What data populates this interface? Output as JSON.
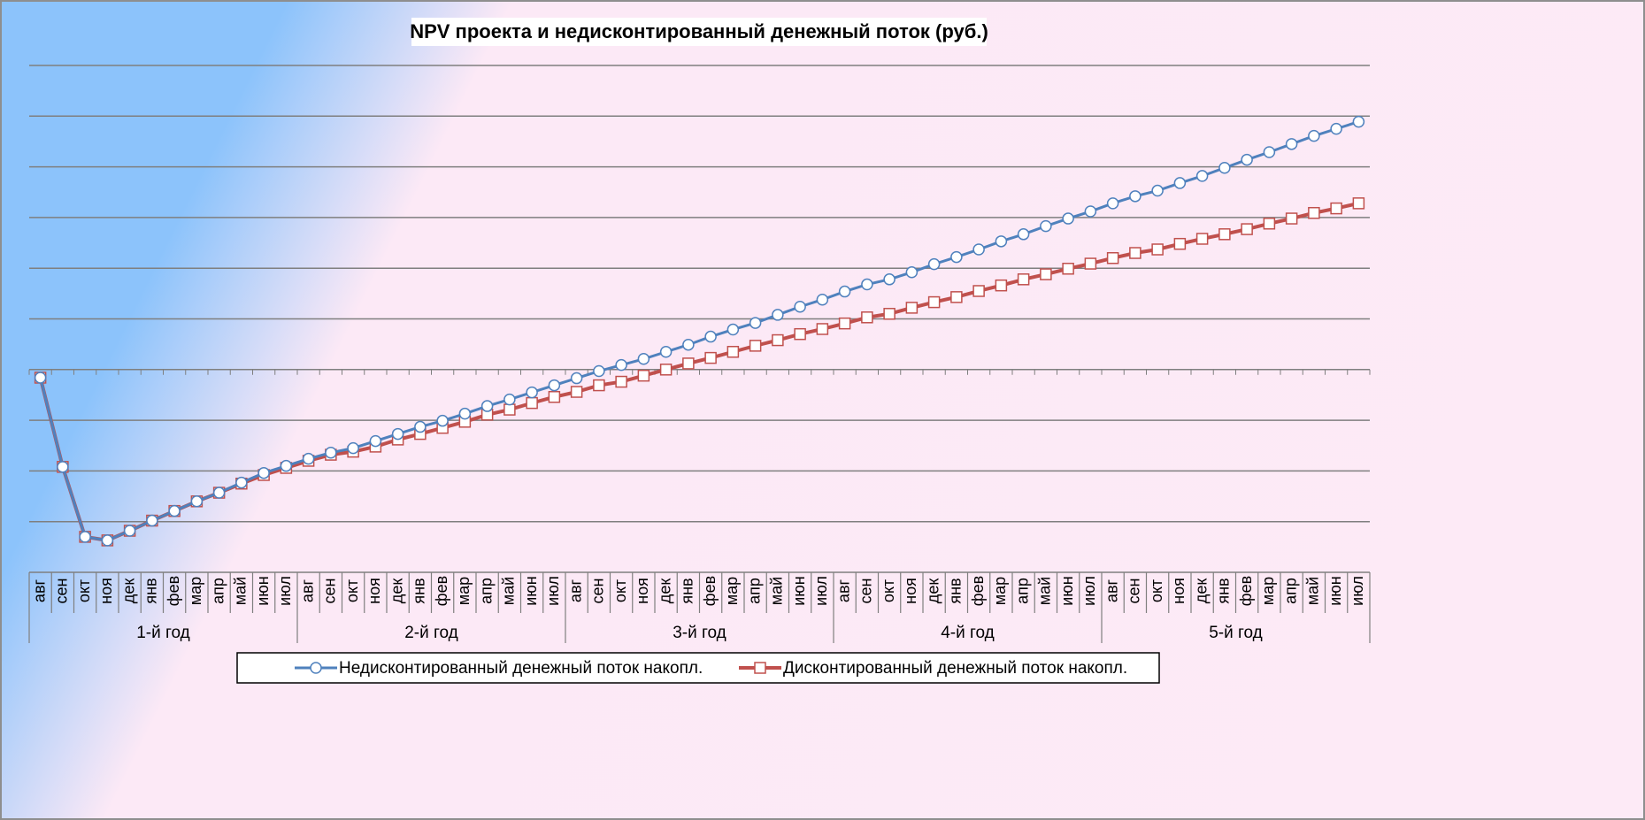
{
  "chart_data": {
    "type": "line",
    "title": "NPV проекта и недисконтированный денежный поток (руб.)",
    "categories": [
      "авг",
      "сен",
      "окт",
      "ноя",
      "дек",
      "янв",
      "фев",
      "мар",
      "апр",
      "май",
      "июн",
      "июл",
      "авг",
      "сен",
      "окт",
      "ноя",
      "дек",
      "янв",
      "фев",
      "мар",
      "апр",
      "май",
      "июн",
      "июл",
      "авг",
      "сен",
      "окт",
      "ноя",
      "дек",
      "янв",
      "фев",
      "мар",
      "апр",
      "май",
      "июн",
      "июл",
      "авг",
      "сен",
      "окт",
      "ноя",
      "дек",
      "янв",
      "фев",
      "мар",
      "апр",
      "май",
      "июн",
      "июл",
      "авг",
      "сен",
      "окт",
      "ноя",
      "дек",
      "янв",
      "фев",
      "мар",
      "апр",
      "май",
      "июн",
      "июл"
    ],
    "category_groups": [
      "1-й год",
      "2-й год",
      "3-й год",
      "4-й год",
      "5-й год"
    ],
    "series": [
      {
        "name": "Недисконтированный денежный поток накопл.",
        "color": "#4f81bd",
        "marker": "circle",
        "values": [
          -0.16,
          -1.92,
          -3.3,
          -3.37,
          -3.18,
          -2.98,
          -2.79,
          -2.6,
          -2.43,
          -2.23,
          -2.04,
          -1.9,
          -1.76,
          -1.64,
          -1.55,
          -1.41,
          -1.27,
          -1.13,
          -1.01,
          -0.87,
          -0.72,
          -0.59,
          -0.45,
          -0.31,
          -0.17,
          -0.03,
          0.09,
          0.21,
          0.35,
          0.49,
          0.65,
          0.79,
          0.92,
          1.08,
          1.24,
          1.38,
          1.54,
          1.68,
          1.78,
          1.92,
          2.08,
          2.22,
          2.37,
          2.53,
          2.67,
          2.83,
          2.98,
          3.12,
          3.28,
          3.42,
          3.53,
          3.68,
          3.82,
          3.98,
          4.14,
          4.29,
          4.45,
          4.61,
          4.75,
          4.89
        ]
      },
      {
        "name": "Дисконтированный денежный поток накопл.",
        "color": "#c0504d",
        "marker": "square",
        "values": [
          -0.16,
          -1.92,
          -3.3,
          -3.37,
          -3.18,
          -2.98,
          -2.79,
          -2.6,
          -2.43,
          -2.25,
          -2.08,
          -1.94,
          -1.8,
          -1.68,
          -1.62,
          -1.52,
          -1.38,
          -1.27,
          -1.15,
          -1.03,
          -0.89,
          -0.79,
          -0.66,
          -0.54,
          -0.44,
          -0.31,
          -0.24,
          -0.12,
          0,
          0.12,
          0.23,
          0.35,
          0.47,
          0.58,
          0.7,
          0.8,
          0.91,
          1.03,
          1.1,
          1.22,
          1.33,
          1.43,
          1.55,
          1.66,
          1.78,
          1.88,
          1.99,
          2.09,
          2.2,
          2.3,
          2.37,
          2.48,
          2.58,
          2.67,
          2.77,
          2.88,
          2.98,
          3.09,
          3.18,
          3.28
        ]
      }
    ],
    "ylim": [
      -4,
      6
    ],
    "yticks": [
      -4,
      -3,
      -2,
      -1,
      0,
      1,
      2,
      3,
      4,
      5,
      6
    ],
    "grid": true
  }
}
